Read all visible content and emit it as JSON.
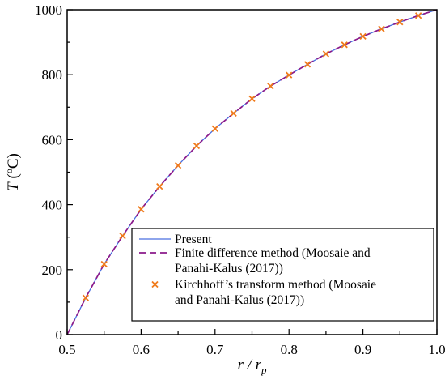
{
  "chart_data": {
    "type": "line",
    "title": "",
    "xlabel": {
      "main": "r / r",
      "sub": "p"
    },
    "ylabel": {
      "main": "T",
      "unit_prefix": " (",
      "unit_sup": "o",
      "unit_suffix": "C)"
    },
    "xlim": [
      0.5,
      1.0
    ],
    "ylim": [
      0,
      1000
    ],
    "xticks": [
      0.5,
      0.6,
      0.7,
      0.8,
      0.9,
      1.0
    ],
    "xtick_labels": [
      "0.5",
      "0.6",
      "0.7",
      "0.8",
      "0.9",
      "1.0"
    ],
    "yticks": [
      0,
      200,
      400,
      600,
      800,
      1000
    ],
    "ytick_labels": [
      "0",
      "200",
      "400",
      "600",
      "800",
      "1000"
    ],
    "grid": false,
    "legend_position": "bottom-right",
    "series": [
      {
        "name": "Present",
        "style": "solid",
        "color": "#4a6fe0",
        "x": [
          0.5,
          0.525,
          0.55,
          0.575,
          0.6,
          0.625,
          0.65,
          0.675,
          0.7,
          0.725,
          0.75,
          0.775,
          0.8,
          0.825,
          0.85,
          0.875,
          0.9,
          0.925,
          0.95,
          0.975,
          1.0
        ],
        "y": [
          0,
          113,
          217,
          304,
          386,
          456,
          521,
          581,
          634,
          681,
          726,
          765,
          799,
          832,
          864,
          892,
          918,
          941,
          962,
          982,
          1000
        ]
      },
      {
        "name": "Finite difference method (Moosaie and Panahi-Kalus (2017))",
        "style": "dashed",
        "color": "#8b1a8b",
        "x": [
          0.5,
          0.525,
          0.55,
          0.575,
          0.6,
          0.625,
          0.65,
          0.675,
          0.7,
          0.725,
          0.75,
          0.775,
          0.8,
          0.825,
          0.85,
          0.875,
          0.9,
          0.925,
          0.95,
          0.975,
          1.0
        ],
        "y": [
          0,
          113,
          217,
          304,
          386,
          456,
          521,
          581,
          634,
          681,
          726,
          765,
          799,
          832,
          864,
          892,
          918,
          941,
          962,
          982,
          1000
        ]
      },
      {
        "name": "Kirchhoff’s transform method (Moosaie and Panahi-Kalus (2017))",
        "style": "markers",
        "marker": "x",
        "color": "#f07a1a",
        "x": [
          0.525,
          0.55,
          0.575,
          0.6,
          0.625,
          0.65,
          0.675,
          0.7,
          0.725,
          0.75,
          0.775,
          0.8,
          0.825,
          0.85,
          0.875,
          0.9,
          0.925,
          0.95,
          0.975
        ],
        "y": [
          113,
          217,
          304,
          386,
          456,
          521,
          581,
          634,
          681,
          726,
          765,
          799,
          832,
          864,
          892,
          918,
          941,
          962,
          982
        ]
      }
    ],
    "legend": [
      {
        "lines": [
          "Present"
        ]
      },
      {
        "lines": [
          "Finite difference method  (Moosaie and",
          "Panahi-Kalus (2017))"
        ]
      },
      {
        "lines": [
          "Kirchhoff’s transform method  (Moosaie",
          "and Panahi-Kalus (2017))"
        ]
      }
    ]
  }
}
